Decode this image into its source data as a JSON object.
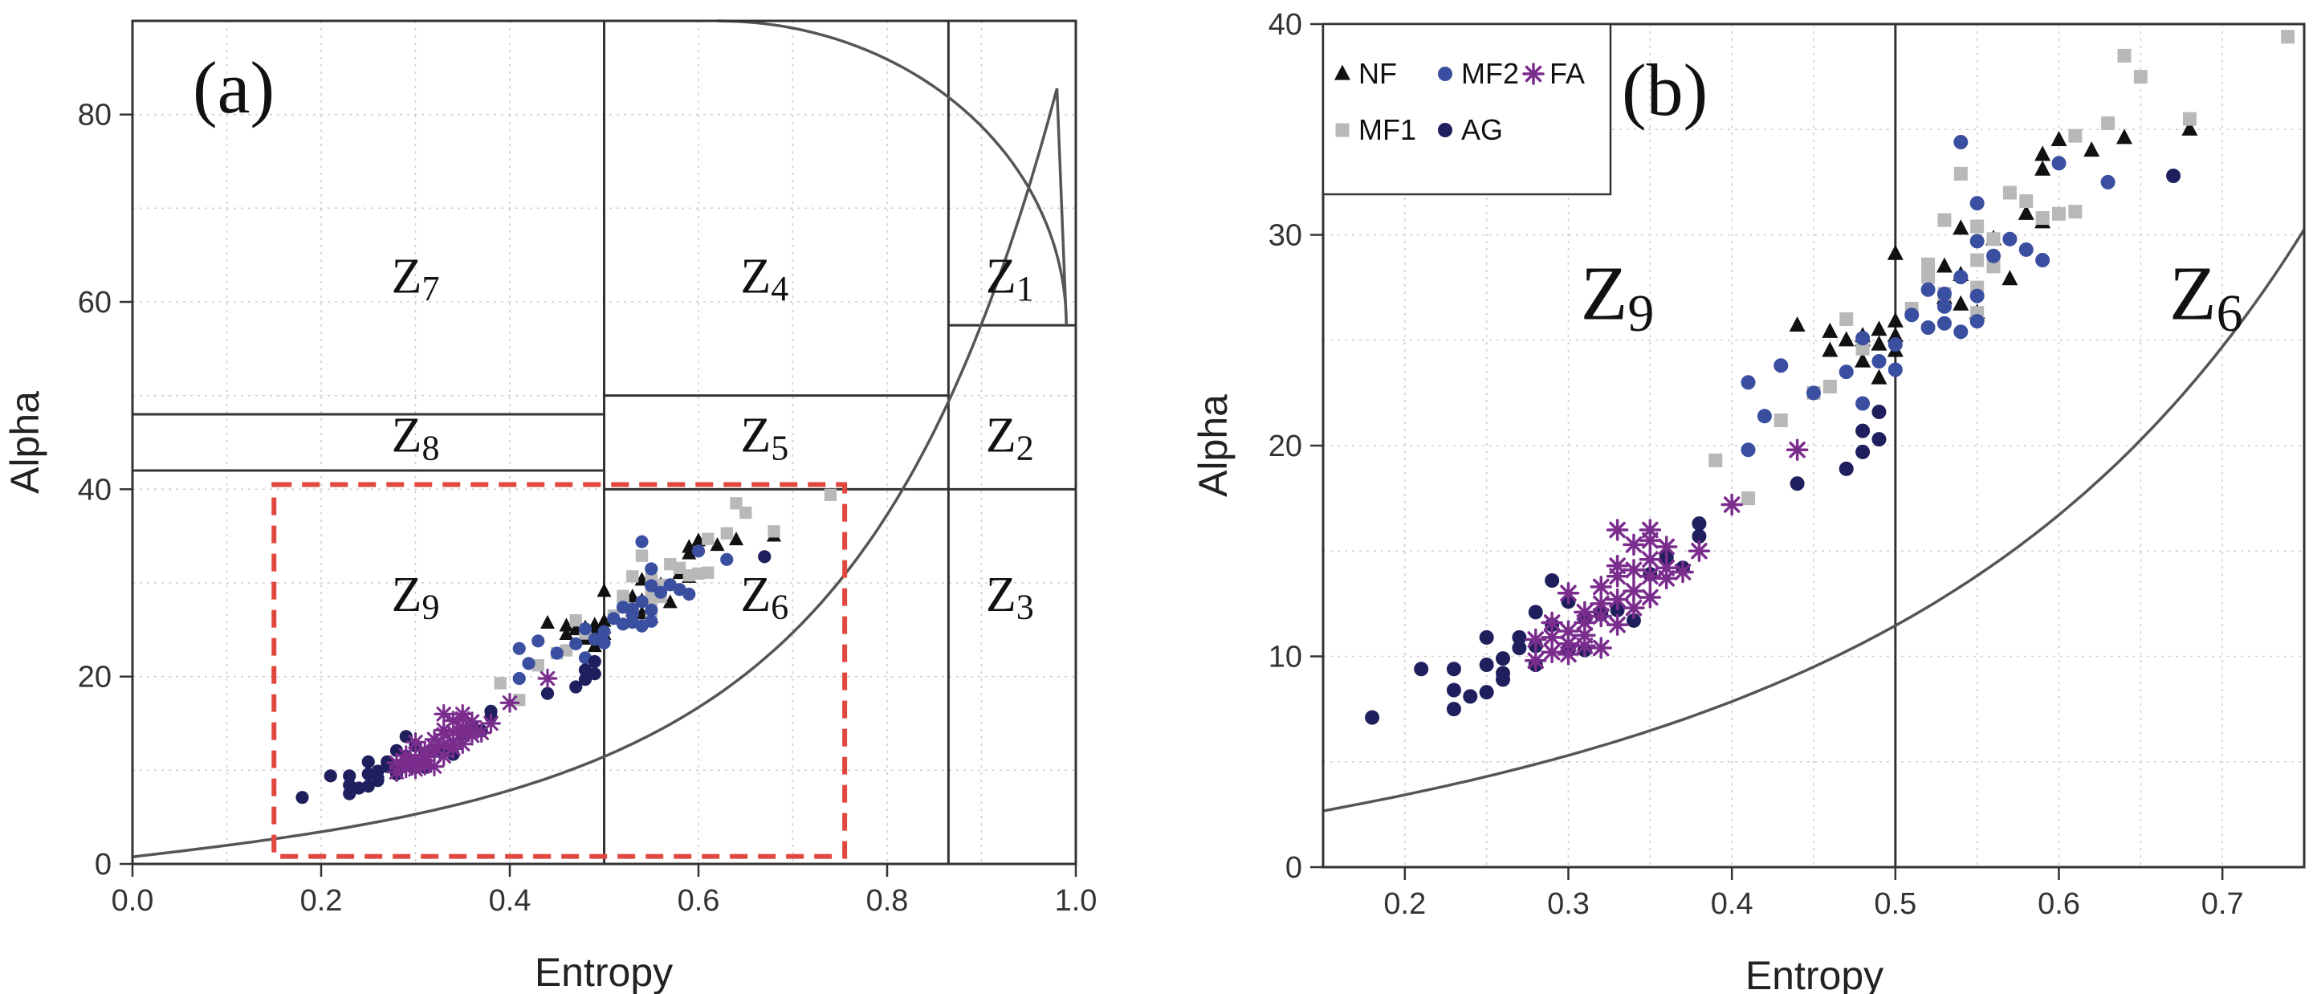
{
  "figure": {
    "panel_a_label": "(a)",
    "panel_b_label": "(b)"
  },
  "chart_data": [
    {
      "type": "scatter",
      "panel": "(a)",
      "xlabel": "Entropy",
      "ylabel": "Alpha",
      "xlim": [
        0,
        1
      ],
      "ylim": [
        0,
        90
      ],
      "xticks": [
        0.0,
        0.2,
        0.4,
        0.6,
        0.8,
        1.0
      ],
      "xtick_labels": [
        "0.0",
        "0.2",
        "0.4",
        "0.6",
        "0.8",
        "1.0"
      ],
      "yticks": [
        0,
        20,
        40,
        60,
        80
      ],
      "ytick_labels": [
        "0",
        "20",
        "40",
        "60",
        "80"
      ],
      "grid": true,
      "zone_labels": [
        {
          "main": "Z",
          "sub": "7",
          "x": 0.3,
          "y": 61
        },
        {
          "main": "Z",
          "sub": "4",
          "x": 0.67,
          "y": 61
        },
        {
          "main": "Z",
          "sub": "1",
          "x": 0.93,
          "y": 61
        },
        {
          "main": "Z",
          "sub": "8",
          "x": 0.3,
          "y": 44
        },
        {
          "main": "Z",
          "sub": "5",
          "x": 0.67,
          "y": 44
        },
        {
          "main": "Z",
          "sub": "2",
          "x": 0.93,
          "y": 44
        },
        {
          "main": "Z",
          "sub": "9",
          "x": 0.3,
          "y": 27
        },
        {
          "main": "Z",
          "sub": "6",
          "x": 0.67,
          "y": 27
        },
        {
          "main": "Z",
          "sub": "3",
          "x": 0.93,
          "y": 27
        }
      ],
      "zone_boundaries": {
        "vertical": [
          0.5,
          0.865
        ],
        "horizontal": [
          {
            "x0": 0.0,
            "x1": 0.5,
            "y": 48
          },
          {
            "x0": 0.0,
            "x1": 0.5,
            "y": 42
          },
          {
            "x0": 0.5,
            "x1": 0.865,
            "y": 50
          },
          {
            "x0": 0.5,
            "x1": 1.0,
            "y": 40
          },
          {
            "x0": 0.865,
            "x1": 1.0,
            "y": 57.5
          }
        ]
      },
      "highlight_box": {
        "x0": 0.15,
        "x1": 0.755,
        "y0": 0.8,
        "y1": 40.5,
        "color": "#e0473e"
      },
      "feasible_curve_color": "#555555"
    },
    {
      "type": "scatter",
      "panel": "(b)",
      "xlabel": "Entropy",
      "ylabel": "Alpha",
      "xlim": [
        0.15,
        0.75
      ],
      "ylim": [
        0,
        40
      ],
      "xticks": [
        0.2,
        0.3,
        0.4,
        0.5,
        0.6,
        0.7
      ],
      "xtick_labels": [
        "0.2",
        "0.3",
        "0.4",
        "0.5",
        "0.6",
        "0.7"
      ],
      "yticks": [
        0,
        10,
        20,
        30,
        40
      ],
      "ytick_labels": [
        "0",
        "10",
        "20",
        "30",
        "40"
      ],
      "grid": true,
      "zone_labels": [
        {
          "main": "Z",
          "sub": "9",
          "x": 0.33,
          "y": 26
        },
        {
          "main": "Z",
          "sub": "6",
          "x": 0.69,
          "y": 26
        }
      ],
      "zone_boundaries": {
        "vertical": [
          0.5
        ]
      },
      "legend": {
        "position": "top-left",
        "entries": [
          {
            "label": "NF",
            "marker": "triangle",
            "color": "#111111"
          },
          {
            "label": "MF2",
            "marker": "circle",
            "color": "#3a4fa0"
          },
          {
            "label": "FA",
            "marker": "asterisk",
            "color": "#7b2d8e"
          },
          {
            "label": "MF1",
            "marker": "square",
            "color": "#b8b8b8"
          },
          {
            "label": "AG",
            "marker": "circle",
            "color": "#1f1f5e"
          }
        ]
      }
    }
  ],
  "series": [
    {
      "name": "NF",
      "marker": "triangle",
      "color": "#111111",
      "points": [
        [
          0.44,
          25.7
        ],
        [
          0.46,
          25.4
        ],
        [
          0.46,
          24.5
        ],
        [
          0.47,
          25.0
        ],
        [
          0.48,
          24.0
        ],
        [
          0.48,
          25.2
        ],
        [
          0.49,
          23.2
        ],
        [
          0.49,
          25.5
        ],
        [
          0.5,
          25.9
        ],
        [
          0.5,
          29.1
        ],
        [
          0.5,
          25.2
        ],
        [
          0.5,
          24.5
        ],
        [
          0.53,
          28.5
        ],
        [
          0.54,
          28.1
        ],
        [
          0.54,
          30.3
        ],
        [
          0.56,
          29.8
        ],
        [
          0.57,
          27.9
        ],
        [
          0.58,
          31.0
        ],
        [
          0.59,
          30.6
        ],
        [
          0.59,
          33.1
        ],
        [
          0.59,
          33.8
        ],
        [
          0.6,
          34.5
        ],
        [
          0.62,
          34.0
        ],
        [
          0.64,
          34.6
        ],
        [
          0.68,
          35.0
        ],
        [
          0.53,
          27.0
        ],
        [
          0.54,
          26.7
        ],
        [
          0.55,
          26.3
        ],
        [
          0.49,
          24.8
        ],
        [
          0.48,
          25.0
        ]
      ]
    },
    {
      "name": "MF1",
      "marker": "square",
      "color": "#b8b8b8",
      "points": [
        [
          0.39,
          19.3
        ],
        [
          0.41,
          17.5
        ],
        [
          0.43,
          21.2
        ],
        [
          0.46,
          22.8
        ],
        [
          0.47,
          26.0
        ],
        [
          0.48,
          24.6
        ],
        [
          0.52,
          28.0
        ],
        [
          0.52,
          28.6
        ],
        [
          0.53,
          30.7
        ],
        [
          0.53,
          27.2
        ],
        [
          0.54,
          32.9
        ],
        [
          0.55,
          28.8
        ],
        [
          0.55,
          27.5
        ],
        [
          0.55,
          30.4
        ],
        [
          0.55,
          26.3
        ],
        [
          0.56,
          29.8
        ],
        [
          0.57,
          32.0
        ],
        [
          0.58,
          31.6
        ],
        [
          0.59,
          30.8
        ],
        [
          0.6,
          31.0
        ],
        [
          0.61,
          34.7
        ],
        [
          0.61,
          31.1
        ],
        [
          0.63,
          35.3
        ],
        [
          0.64,
          38.5
        ],
        [
          0.65,
          37.5
        ],
        [
          0.68,
          35.5
        ],
        [
          0.74,
          39.4
        ],
        [
          0.45,
          22.5
        ],
        [
          0.51,
          26.5
        ],
        [
          0.56,
          28.5
        ]
      ]
    },
    {
      "name": "MF2",
      "marker": "circle",
      "color": "#3a4fa0",
      "points": [
        [
          0.41,
          23.0
        ],
        [
          0.41,
          19.8
        ],
        [
          0.42,
          21.4
        ],
        [
          0.43,
          23.8
        ],
        [
          0.45,
          22.5
        ],
        [
          0.47,
          23.5
        ],
        [
          0.48,
          25.1
        ],
        [
          0.48,
          22.0
        ],
        [
          0.49,
          24.0
        ],
        [
          0.5,
          23.6
        ],
        [
          0.51,
          26.2
        ],
        [
          0.52,
          25.6
        ],
        [
          0.53,
          25.8
        ],
        [
          0.53,
          27.2
        ],
        [
          0.54,
          34.4
        ],
        [
          0.54,
          28.0
        ],
        [
          0.54,
          25.4
        ],
        [
          0.55,
          31.5
        ],
        [
          0.55,
          29.7
        ],
        [
          0.55,
          27.1
        ],
        [
          0.55,
          25.9
        ],
        [
          0.56,
          29.0
        ],
        [
          0.57,
          29.8
        ],
        [
          0.58,
          29.3
        ],
        [
          0.59,
          28.8
        ],
        [
          0.6,
          33.4
        ],
        [
          0.63,
          32.5
        ],
        [
          0.53,
          26.6
        ],
        [
          0.52,
          27.4
        ],
        [
          0.5,
          24.8
        ]
      ]
    },
    {
      "name": "AG",
      "marker": "circle",
      "color": "#1f1f5e",
      "points": [
        [
          0.18,
          7.1
        ],
        [
          0.21,
          9.4
        ],
        [
          0.23,
          7.5
        ],
        [
          0.23,
          8.4
        ],
        [
          0.23,
          9.4
        ],
        [
          0.24,
          8.1
        ],
        [
          0.25,
          9.6
        ],
        [
          0.25,
          10.9
        ],
        [
          0.25,
          8.3
        ],
        [
          0.26,
          9.9
        ],
        [
          0.26,
          8.9
        ],
        [
          0.27,
          10.4
        ],
        [
          0.27,
          10.9
        ],
        [
          0.28,
          9.6
        ],
        [
          0.28,
          12.1
        ],
        [
          0.28,
          10.5
        ],
        [
          0.29,
          13.6
        ],
        [
          0.29,
          11.5
        ],
        [
          0.3,
          10.3
        ],
        [
          0.3,
          12.6
        ],
        [
          0.31,
          11.8
        ],
        [
          0.31,
          10.3
        ],
        [
          0.33,
          12.2
        ],
        [
          0.34,
          11.7
        ],
        [
          0.35,
          13.9
        ],
        [
          0.36,
          14.7
        ],
        [
          0.37,
          14.2
        ],
        [
          0.38,
          16.3
        ],
        [
          0.38,
          15.7
        ],
        [
          0.44,
          18.2
        ],
        [
          0.47,
          18.9
        ],
        [
          0.48,
          20.7
        ],
        [
          0.48,
          19.7
        ],
        [
          0.49,
          21.6
        ],
        [
          0.49,
          20.3
        ],
        [
          0.67,
          32.8
        ],
        [
          0.32,
          12.0
        ],
        [
          0.26,
          9.2
        ]
      ]
    },
    {
      "name": "FA",
      "marker": "asterisk",
      "color": "#7b2d8e",
      "points": [
        [
          0.28,
          9.8
        ],
        [
          0.28,
          10.8
        ],
        [
          0.29,
          10.2
        ],
        [
          0.29,
          11.6
        ],
        [
          0.3,
          10.1
        ],
        [
          0.3,
          11.2
        ],
        [
          0.3,
          13.0
        ],
        [
          0.3,
          10.6
        ],
        [
          0.31,
          11.0
        ],
        [
          0.31,
          12.1
        ],
        [
          0.31,
          10.5
        ],
        [
          0.31,
          11.6
        ],
        [
          0.32,
          12.5
        ],
        [
          0.32,
          13.3
        ],
        [
          0.32,
          11.9
        ],
        [
          0.33,
          12.7
        ],
        [
          0.33,
          14.3
        ],
        [
          0.33,
          16.0
        ],
        [
          0.33,
          11.5
        ],
        [
          0.34,
          13.1
        ],
        [
          0.34,
          15.3
        ],
        [
          0.34,
          12.3
        ],
        [
          0.34,
          14.1
        ],
        [
          0.35,
          13.8
        ],
        [
          0.35,
          15.5
        ],
        [
          0.35,
          16.0
        ],
        [
          0.35,
          14.6
        ],
        [
          0.36,
          14.2
        ],
        [
          0.36,
          13.7
        ],
        [
          0.36,
          15.2
        ],
        [
          0.37,
          14.0
        ],
        [
          0.38,
          15.0
        ],
        [
          0.4,
          17.2
        ],
        [
          0.44,
          19.8
        ],
        [
          0.32,
          10.4
        ],
        [
          0.29,
          10.9
        ],
        [
          0.33,
          13.8
        ],
        [
          0.35,
          12.8
        ]
      ]
    }
  ]
}
